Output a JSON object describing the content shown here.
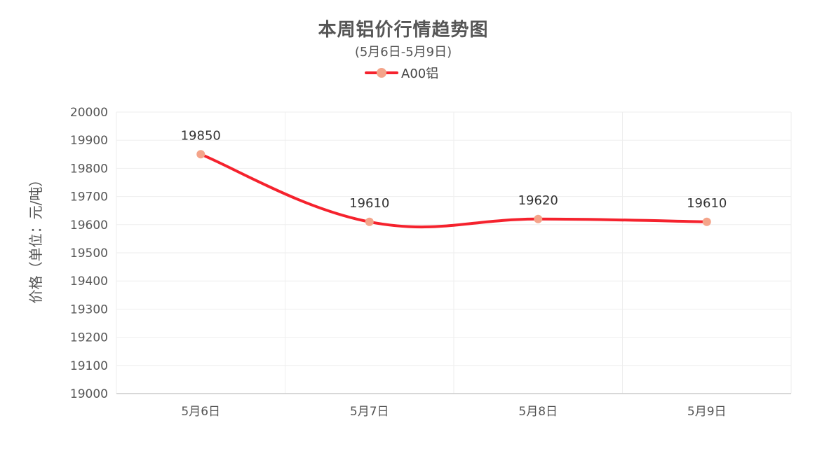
{
  "chart_data": {
    "type": "line",
    "title": "本周铝价行情趋势图",
    "subtitle": "(5月6日-5月9日)",
    "ylabel": "价格（单位：元/吨）",
    "xlabel": "",
    "categories": [
      "5月6日",
      "5月7日",
      "5月8日",
      "5月9日"
    ],
    "series": [
      {
        "name": "A00铝",
        "values": [
          19850,
          19610,
          19620,
          19610
        ]
      }
    ],
    "ylim": [
      19000,
      20000
    ],
    "yticks": [
      19000,
      19100,
      19200,
      19300,
      19400,
      19500,
      19600,
      19700,
      19800,
      19900,
      20000
    ],
    "data_labels": true,
    "smooth": true,
    "grid": true,
    "legend_position": "top-center"
  },
  "colors": {
    "line": "#f5222d",
    "marker": "#f4a48a",
    "grid": "#eeeeee",
    "axis": "#cccccc",
    "text": "#555555"
  }
}
